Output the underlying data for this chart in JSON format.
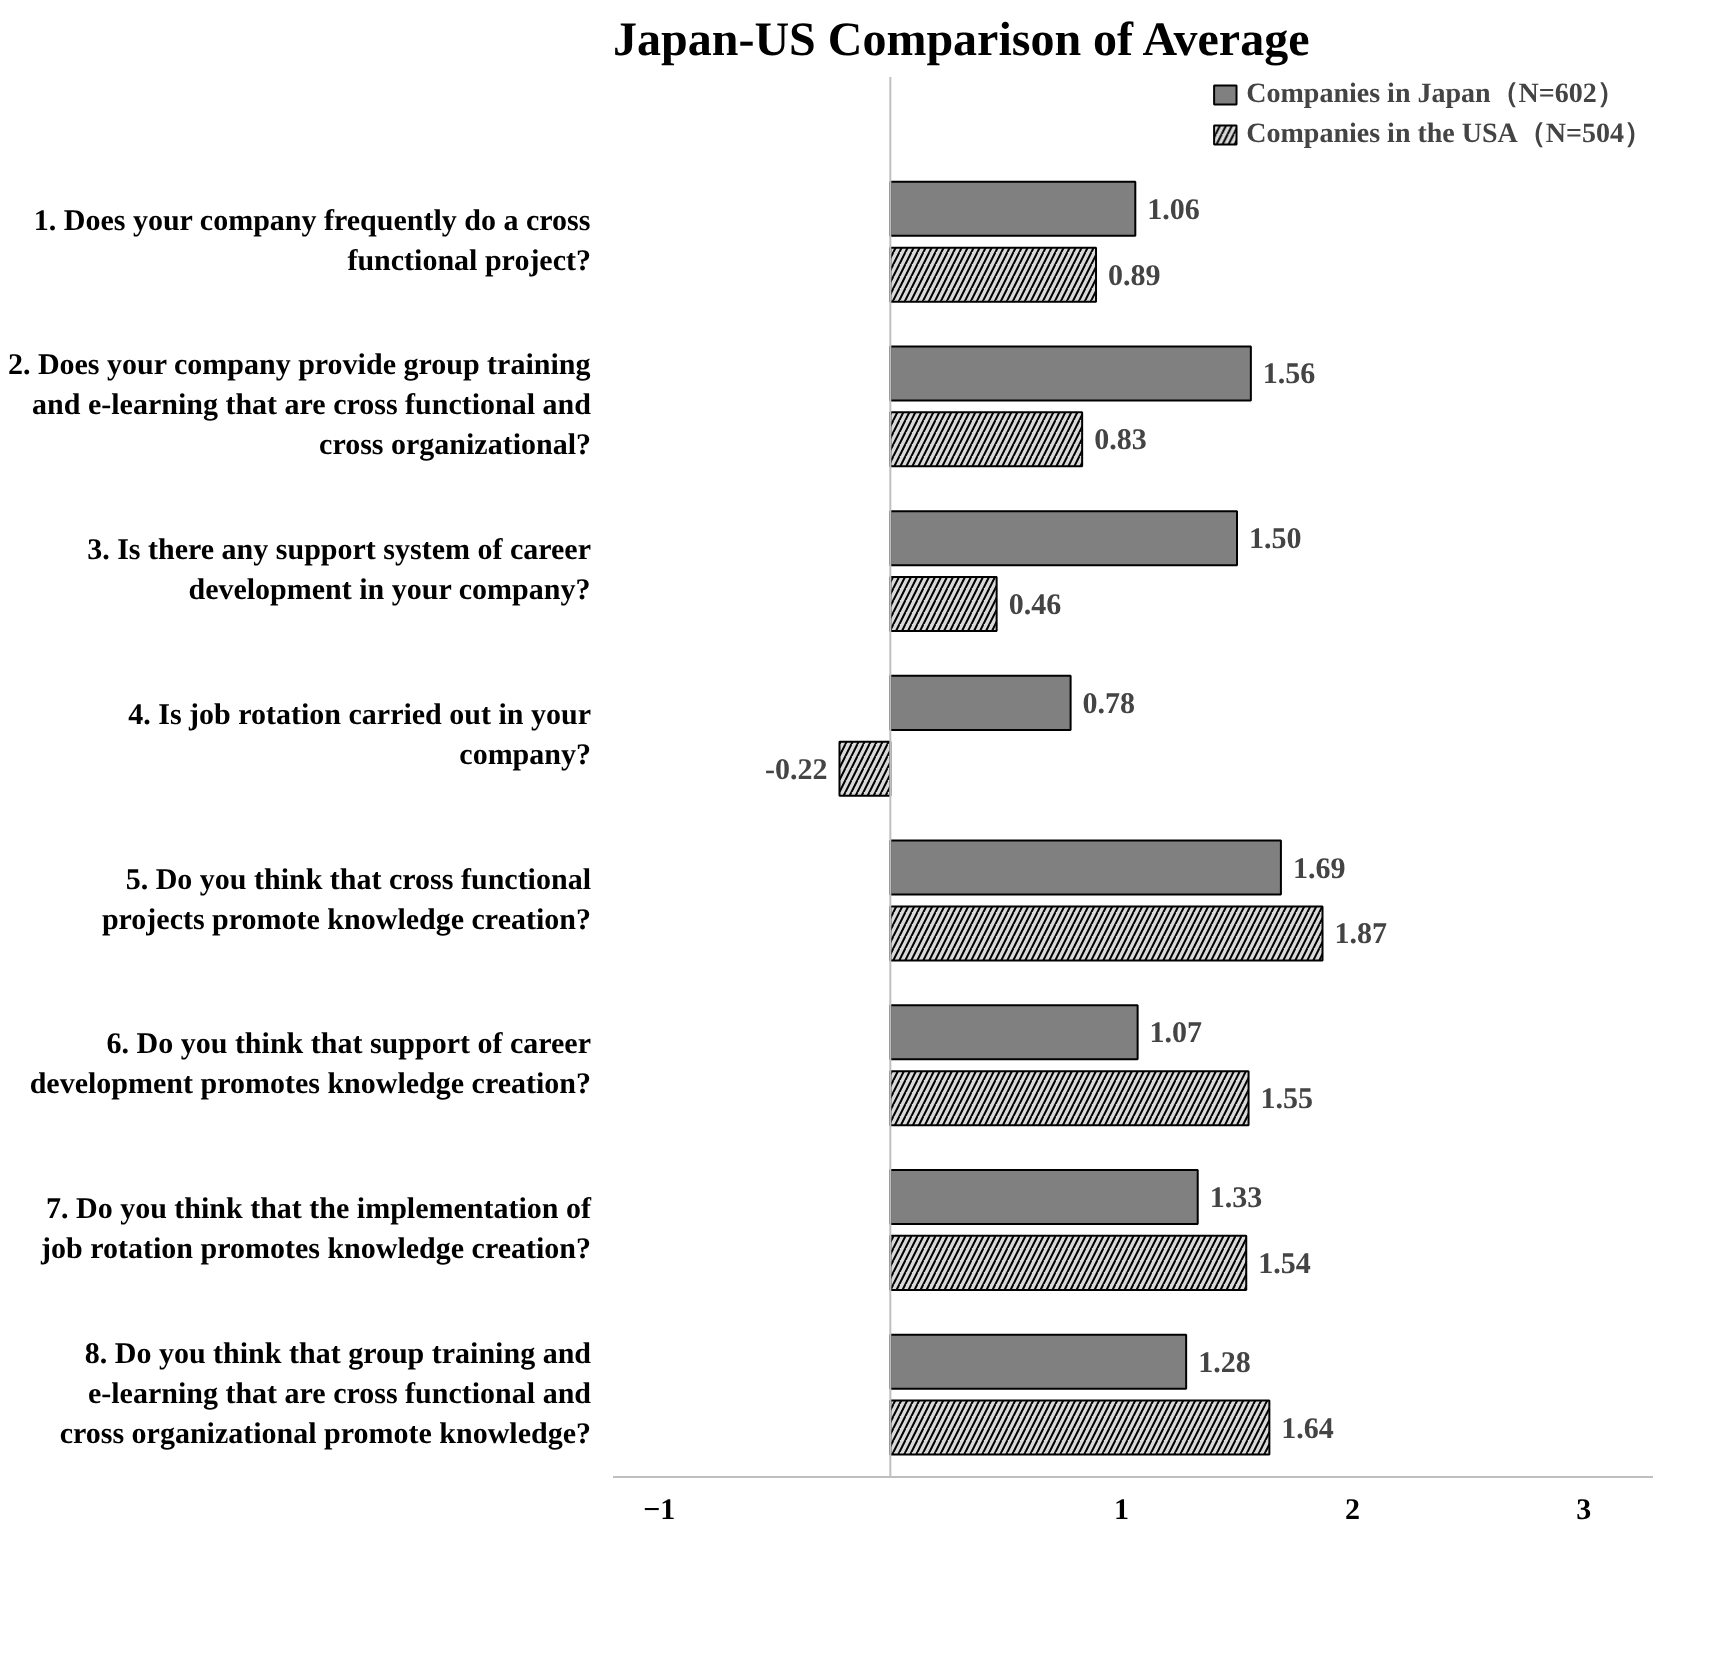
{
  "chart_data": {
    "type": "bar",
    "orientation": "horizontal",
    "title": "Japan-US Comparison of Average",
    "categories": [
      "1. Does your company frequently do a cross functional project?",
      "2. Does your company provide group training and e-learning that are cross functional and cross organizational?",
      "3. Is there any support system of career development in your company?",
      "4. Is job rotation carried out in your company?",
      "5. Do you think that cross functional projects promote knowledge creation?",
      "6. Do you think that support of career development promotes knowledge creation?",
      "7. Do you think that the implementation of job rotation promotes knowledge creation?",
      "8. Do you think that group training and e-learning that are cross functional and cross organizational promote knowledge?"
    ],
    "series": [
      {
        "name": "Companies in Japan（N=602）",
        "color": "#808080",
        "values": [
          1.06,
          1.56,
          1.5,
          0.78,
          1.69,
          1.07,
          1.33,
          1.28
        ],
        "value_labels": [
          "1.06",
          "1.56",
          "1.50",
          "0.78",
          "1.69",
          "1.07",
          "1.33",
          "1.28"
        ]
      },
      {
        "name": "Companies in the USA（N=504）",
        "color": "#d9d9d9",
        "values": [
          0.89,
          0.83,
          0.46,
          -0.22,
          1.87,
          1.55,
          1.54,
          1.64
        ],
        "value_labels": [
          "0.89",
          "0.83",
          "0.46",
          "-0.22",
          "1.87",
          "1.55",
          "1.54",
          "1.64"
        ]
      }
    ],
    "xlim": [
      -1.2,
      3.3
    ],
    "xticks": [
      -1,
      1,
      2,
      3
    ],
    "grid": false,
    "legend": "top right"
  }
}
